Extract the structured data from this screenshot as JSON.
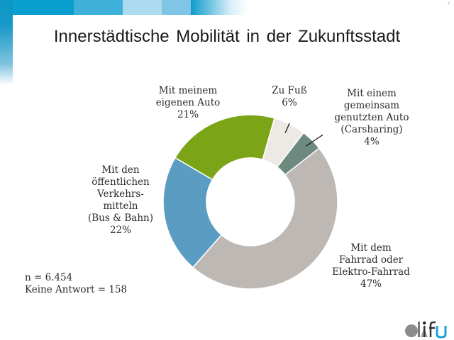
{
  "page_number": "4",
  "header_colors": [
    "#0a9fcf",
    "#3fb0da",
    "#acdaef",
    "#7fc5e5"
  ],
  "title": "Innerstädtische Mobilität in der Zukunftsstadt",
  "chart_data": {
    "type": "pie",
    "variant": "donut",
    "title": "Innerstädtische Mobilität in der Zukunftsstadt",
    "unit": "%",
    "slices": [
      {
        "key": "zu_fuss",
        "label_lines": [
          "Zu Fuß"
        ],
        "value": 6,
        "value_label": "6%",
        "color": "#ede9e5"
      },
      {
        "key": "carsharing",
        "label_lines": [
          "Mit einem",
          "gemeinsam",
          "genutzten Auto",
          "(Carsharing)"
        ],
        "value": 4,
        "value_label": "4%",
        "color": "#6e8a80"
      },
      {
        "key": "fahrrad",
        "label_lines": [
          "Mit dem",
          "Fahrrad oder",
          "Elektro-Fahrrad"
        ],
        "value": 47,
        "value_label": "47%",
        "color": "#bdb8b3"
      },
      {
        "key": "oepnv",
        "label_lines": [
          "Mit den",
          "öffentlichen",
          "Verkehrs-",
          "mitteln",
          "(Bus & Bahn)"
        ],
        "value": 22,
        "value_label": "22%",
        "color": "#5b9cc3"
      },
      {
        "key": "auto",
        "label_lines": [
          "Mit meinem",
          "eigenen Auto"
        ],
        "value": 21,
        "value_label": "21%",
        "color": "#7ba516"
      }
    ],
    "legend": "none (direct labels)"
  },
  "notes": {
    "n": "n = 6.454",
    "no_answer": "Keine Antwort = 158"
  },
  "logo": {
    "name": "difu",
    "colors": {
      "circle": "#8c8c8c",
      "triangle": "#a5a5a5",
      "u": "#1aa3d6"
    }
  }
}
